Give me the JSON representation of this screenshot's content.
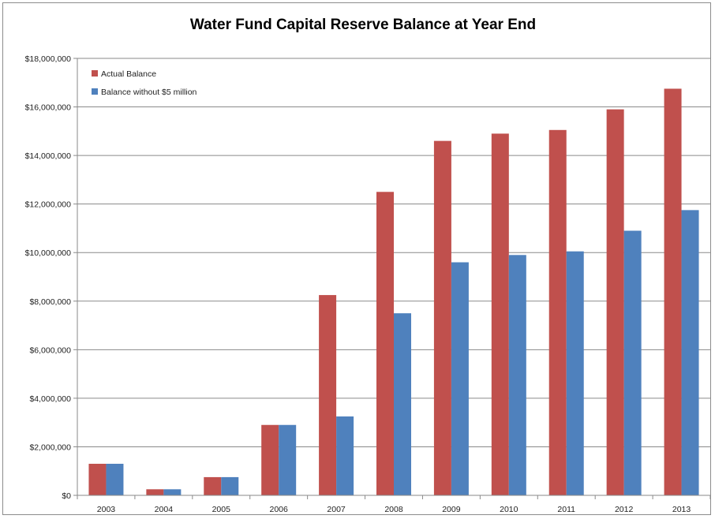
{
  "chart_data": {
    "type": "bar",
    "title": "Water Fund Capital Reserve Balance at Year End",
    "xlabel": "",
    "ylabel": "",
    "categories": [
      "2003",
      "2004",
      "2005",
      "2006",
      "2007",
      "2008",
      "2009",
      "2010",
      "2011",
      "2012",
      "2013"
    ],
    "series": [
      {
        "name": "Actual Balance",
        "color": "#c0504d",
        "values": [
          1300000,
          250000,
          750000,
          2900000,
          8250000,
          12500000,
          14600000,
          14900000,
          15050000,
          15900000,
          16750000
        ]
      },
      {
        "name": "Balance without $5 million",
        "color": "#4f81bd",
        "values": [
          1300000,
          250000,
          750000,
          2900000,
          3250000,
          7500000,
          9600000,
          9900000,
          10050000,
          10900000,
          11750000
        ]
      }
    ],
    "ylim": [
      0,
      18000000
    ],
    "yticks": [
      "$0",
      "$2,000,000",
      "$4,000,000",
      "$6,000,000",
      "$8,000,000",
      "$10,000,000",
      "$12,000,000",
      "$14,000,000",
      "$16,000,000",
      "$18,000,000"
    ],
    "grid": true,
    "legend_position": "top-left"
  }
}
